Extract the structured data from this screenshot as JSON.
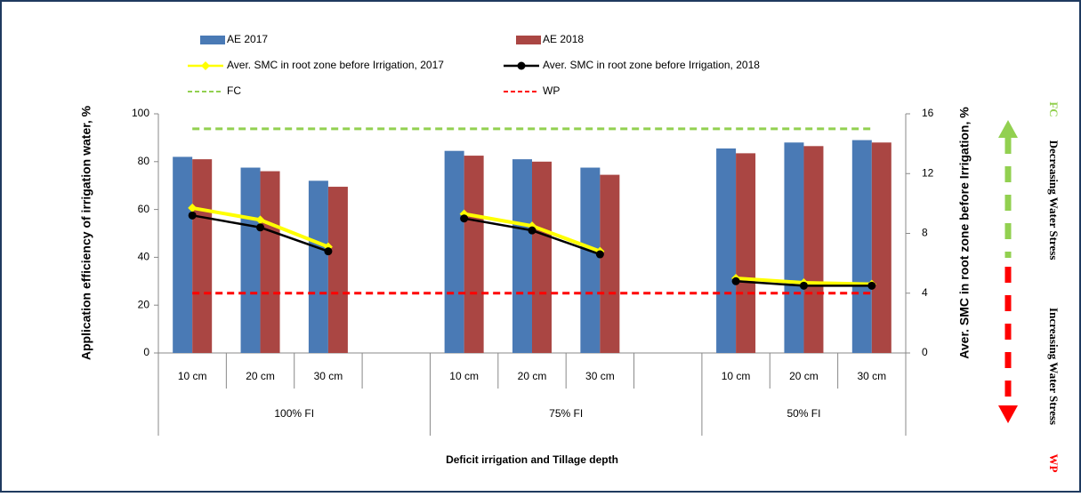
{
  "chart_data": {
    "type": "bar",
    "categories": [
      "10 cm",
      "20 cm",
      "30 cm",
      null,
      "10 cm",
      "20 cm",
      "30 cm",
      null,
      "10 cm",
      "20 cm",
      "30 cm"
    ],
    "groups": [
      "100% FI",
      "75% FI",
      "50% FI"
    ],
    "series": [
      {
        "name": "AE 2017",
        "type": "bar",
        "color": "#4a7ab5",
        "values": [
          82,
          77.5,
          72,
          null,
          84.5,
          81,
          77.5,
          null,
          85.5,
          88,
          89
        ]
      },
      {
        "name": "AE 2018",
        "type": "bar",
        "color": "#aa4643",
        "values": [
          81,
          76,
          69.5,
          null,
          82.5,
          80,
          74.5,
          null,
          83.5,
          86.5,
          88
        ]
      },
      {
        "name": "Aver. SMC in root zone before Irrigation, 2017",
        "type": "line",
        "marker": "diamond",
        "axis": "y2",
        "color": "#ffff00",
        "values": [
          9.7,
          8.9,
          7.1,
          null,
          9.3,
          8.5,
          6.8,
          null,
          5.0,
          4.7,
          4.6
        ]
      },
      {
        "name": "Aver. SMC  in root zone before Irrigation,  2018",
        "type": "line",
        "marker": "circle",
        "axis": "y2",
        "color": "#000000",
        "values": [
          9.2,
          8.4,
          6.8,
          null,
          9.0,
          8.2,
          6.6,
          null,
          4.8,
          4.5,
          4.5
        ]
      },
      {
        "name": "FC",
        "type": "dashed",
        "axis": "y2",
        "color": "#92d050",
        "values": [
          15,
          15,
          15,
          15,
          15,
          15,
          15,
          15,
          15,
          15,
          15
        ]
      },
      {
        "name": "WP",
        "type": "dashed",
        "axis": "y2",
        "color": "#ff0000",
        "values": [
          4,
          4,
          4,
          4,
          4,
          4,
          4,
          4,
          4,
          4,
          4
        ]
      }
    ],
    "ylabel": "Application efficiency of irrigation water, %",
    "y2label": "Aver. SMC  in root zone before Irrigation, %",
    "xlabel": "Deficit irrigation and Tillage depth",
    "ylim": [
      0,
      100
    ],
    "yticks": [
      0,
      20,
      40,
      60,
      80,
      100
    ],
    "y2lim": [
      0,
      16
    ],
    "y2ticks": [
      0,
      4,
      8,
      12,
      16
    ],
    "side_labels": [
      {
        "text": "FC",
        "color": "#92d050"
      },
      {
        "text": "Decreasing Water Stress",
        "color": "#000000"
      },
      {
        "text": "Increasing Water Stress",
        "color": "#000000"
      },
      {
        "text": "WP",
        "color": "#ff0000"
      }
    ]
  }
}
